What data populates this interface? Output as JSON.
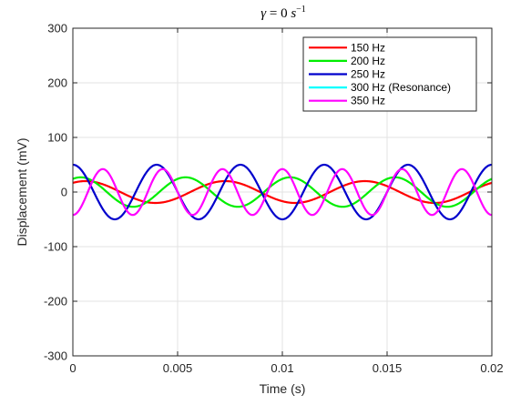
{
  "chart_data": {
    "type": "line",
    "title": {
      "symbol": "γ",
      "equals": " = 0 ",
      "unit_base": "s",
      "unit_exp": "−1"
    },
    "xlabel": "Time (s)",
    "ylabel": "Displacement (mV)",
    "xlim": [
      0,
      0.02
    ],
    "ylim": [
      -300,
      300
    ],
    "grid": true,
    "legend_position": "top-right",
    "x_ticks": [
      0,
      0.005,
      0.01,
      0.015,
      0.02
    ],
    "x_tick_labels": [
      "0",
      "0.005",
      "0.01",
      "0.015",
      "0.02"
    ],
    "y_ticks": [
      -300,
      -200,
      -100,
      0,
      100,
      200,
      300
    ],
    "y_tick_labels": [
      "-300",
      "-200",
      "-100",
      "0",
      "100",
      "200",
      "300"
    ],
    "series": [
      {
        "name": "150 Hz",
        "color": "#ff0000",
        "frequency_hz": 150,
        "amplitude_mv": 20,
        "phase_rad": 1.0,
        "visible": true
      },
      {
        "name": "200 Hz",
        "color": "#00ee00",
        "frequency_hz": 200,
        "amplitude_mv": 27,
        "phase_rad": 1.1,
        "visible": true
      },
      {
        "name": "250 Hz",
        "color": "#0000cc",
        "frequency_hz": 250,
        "amplitude_mv": 50,
        "phase_rad": 1.571,
        "visible": true
      },
      {
        "name": "300 Hz (Resonance)",
        "color": "#00ffff",
        "frequency_hz": 300,
        "amplitude_mv": 0,
        "phase_rad": 0,
        "visible": false
      },
      {
        "name": "350 Hz",
        "color": "#ff00ff",
        "frequency_hz": 350,
        "amplitude_mv": 42,
        "phase_rad": -1.571,
        "visible": true
      }
    ]
  }
}
